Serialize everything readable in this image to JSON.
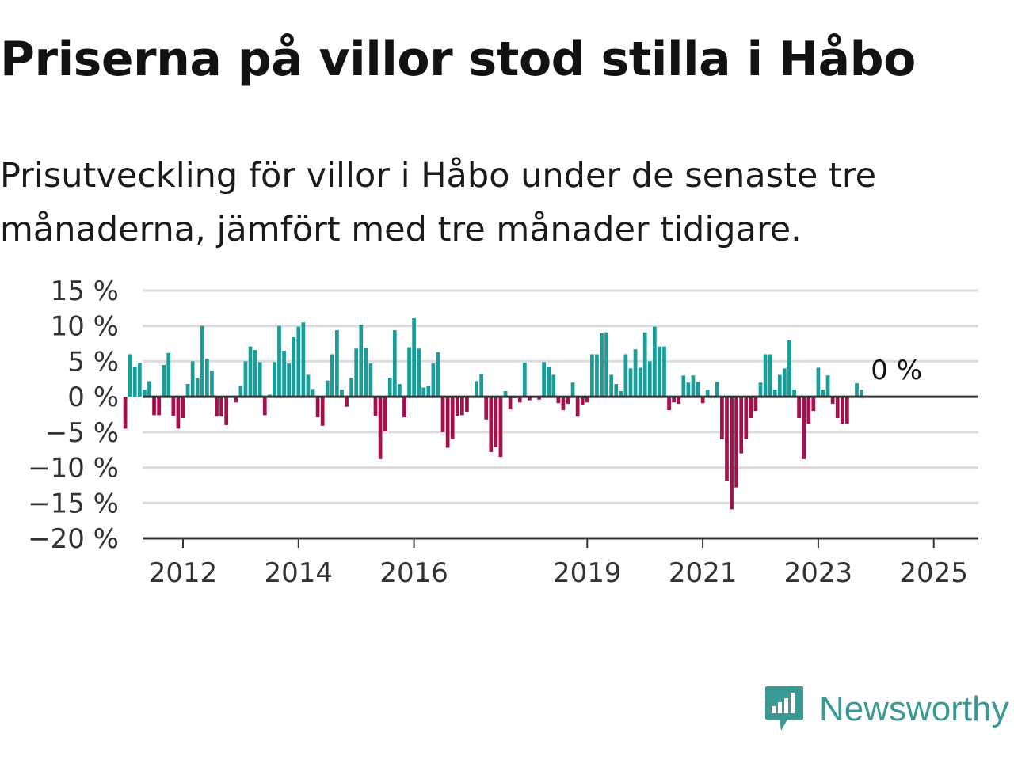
{
  "title": "Priserna på villor stod stilla i Håbo",
  "subtitle": "Prisutveckling för villor i Håbo under de senaste tre månaderna, jämfört med tre månader tidigare.",
  "brand": {
    "name": "Newsworthy",
    "color": "#3a9a93",
    "icon": "newsworthy-logo-icon"
  },
  "colors": {
    "positive": "#1a9c99",
    "negative": "#a50f4b",
    "grid": "#dcdcdc",
    "axis": "#333333"
  },
  "chart_data": {
    "type": "bar",
    "ylim": [
      -20,
      15
    ],
    "y_ticks": [
      15,
      10,
      5,
      0,
      -5,
      -10,
      -15,
      -20
    ],
    "y_tick_labels": [
      "15 %",
      "10 %",
      "5 %",
      "0 %",
      "−5 %",
      "−10 %",
      "−15 %",
      "−20 %"
    ],
    "x_ticks": [
      "2012",
      "2014",
      "2016",
      "2019",
      "2021",
      "2023",
      "2025"
    ],
    "x_start": "2011-01",
    "last_label": "0 %",
    "values": [
      -4.5,
      6,
      4.2,
      4.8,
      1,
      2.2,
      -2.6,
      -2.6,
      4.5,
      6.2,
      -2.7,
      -4.5,
      -3,
      1.8,
      5,
      2.7,
      10,
      5.4,
      3.7,
      -2.8,
      -2.8,
      -4,
      0,
      -0.8,
      1.5,
      5,
      7.1,
      6.6,
      4.9,
      -2.6,
      0.3,
      4.9,
      10,
      6.5,
      4.7,
      8.4,
      9.9,
      10.5,
      3.1,
      1.1,
      -2.9,
      -4.1,
      2.3,
      6,
      9.4,
      1,
      -1.4,
      2.7,
      6.8,
      10.2,
      6.9,
      4.7,
      -2.7,
      -8.8,
      -4.9,
      2.7,
      9.4,
      1.8,
      -2.9,
      7,
      11.1,
      6.8,
      1.3,
      1.5,
      4.7,
      6.3,
      -5,
      -7.2,
      -6,
      -2.7,
      -2.6,
      -2.1,
      0,
      2.2,
      3.2,
      -3.2,
      -7.8,
      -7.1,
      -8.5,
      0.8,
      -1.8,
      -0.2,
      -0.8,
      4.8,
      -0.5,
      0.1,
      -0.4,
      4.9,
      4.2,
      3.1,
      -0.9,
      -1.9,
      -1,
      2,
      -2.8,
      -1.2,
      -0.8,
      6,
      6,
      9,
      9.1,
      3.1,
      1.8,
      0.8,
      6,
      4,
      6.7,
      4.1,
      9.1,
      5,
      9.9,
      7.1,
      7.1,
      -1.9,
      -0.8,
      -1,
      3,
      2,
      3,
      2.1,
      -0.9,
      1,
      0,
      2.1,
      -6,
      -11.9,
      -15.9,
      -12.8,
      -8,
      -6,
      -3,
      -2,
      2,
      6,
      6,
      1,
      3.1,
      4,
      8,
      1,
      -3,
      -8.8,
      -3.8,
      -2,
      4.1,
      1,
      3,
      -1,
      -3,
      -3.8,
      -3.8,
      0,
      1.9,
      1,
      0
    ]
  }
}
